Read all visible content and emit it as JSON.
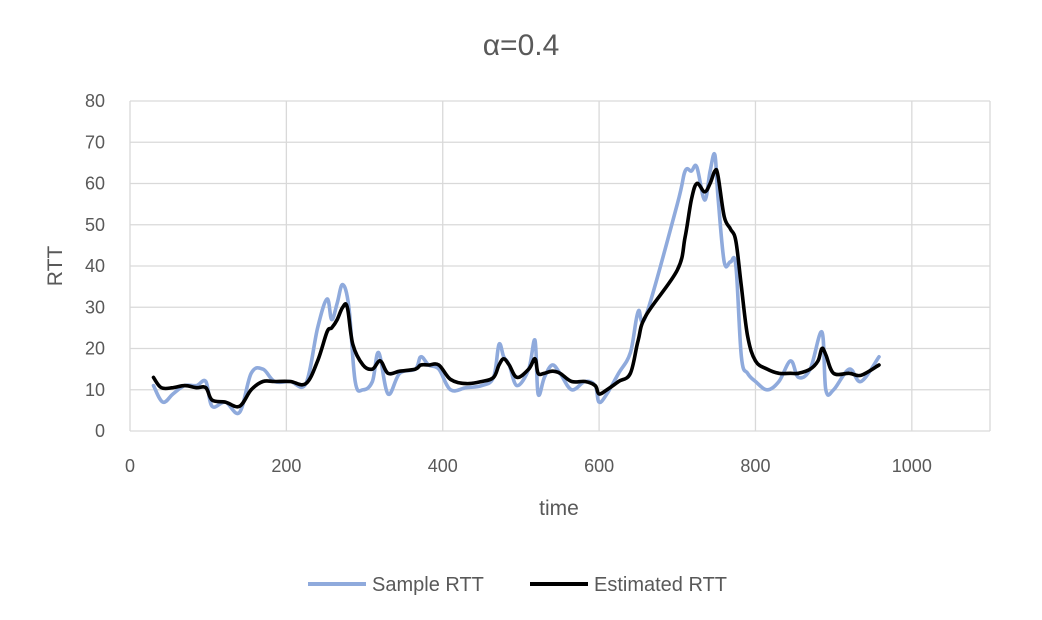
{
  "chart_data": {
    "type": "line",
    "title": "α=0.4",
    "xlabel": "time",
    "ylabel": "RTT",
    "xlim": [
      0,
      1100
    ],
    "ylim": [
      0,
      80
    ],
    "xticks": [
      0,
      200,
      400,
      600,
      800,
      1000
    ],
    "yticks": [
      0,
      10,
      20,
      30,
      40,
      50,
      60,
      70,
      80
    ],
    "grid": true,
    "legend": "bottom",
    "series": [
      {
        "name": "Sample RTT",
        "color": "#8faadc",
        "x": [
          30,
          42,
          55,
          70,
          85,
          97,
          105,
          122,
          140,
          155,
          170,
          185,
          205,
          225,
          240,
          252,
          258,
          265,
          272,
          280,
          288,
          298,
          310,
          318,
          330,
          345,
          365,
          372,
          382,
          395,
          410,
          430,
          450,
          465,
          472,
          478,
          485,
          495,
          510,
          518,
          522,
          530,
          540,
          550,
          565,
          582,
          595,
          600,
          610,
          625,
          640,
          650,
          660,
          700,
          710,
          718,
          725,
          735,
          742,
          748,
          752,
          760,
          768,
          775,
          782,
          790,
          800,
          815,
          830,
          845,
          855,
          870,
          885,
          890,
          900,
          920,
          935,
          958
        ],
        "y": [
          11,
          7,
          9,
          11,
          11,
          12,
          6,
          7,
          4.5,
          14,
          15,
          12,
          12,
          11.5,
          25,
          32,
          27,
          31,
          35.5,
          30,
          12,
          10,
          12,
          19,
          9,
          14,
          15,
          18,
          16,
          15,
          10,
          10.5,
          11,
          13,
          21,
          18,
          16,
          11,
          15,
          22,
          9,
          13,
          16,
          14,
          10,
          12,
          11,
          7,
          9,
          14,
          19,
          29,
          28,
          55,
          63,
          63,
          64,
          56,
          63,
          67,
          57,
          41,
          41,
          40,
          18,
          14,
          12,
          10,
          12,
          17,
          13,
          15,
          24,
          10,
          10,
          15,
          12,
          18
        ]
      },
      {
        "name": "Estimated RTT",
        "color": "#000000",
        "x": [
          30,
          40,
          55,
          70,
          85,
          97,
          105,
          122,
          140,
          155,
          170,
          185,
          205,
          225,
          240,
          252,
          258,
          265,
          272,
          278,
          285,
          298,
          310,
          320,
          330,
          345,
          365,
          372,
          382,
          395,
          410,
          430,
          450,
          465,
          472,
          478,
          485,
          495,
          510,
          518,
          522,
          530,
          540,
          550,
          565,
          582,
          595,
          600,
          610,
          625,
          640,
          650,
          660,
          700,
          710,
          718,
          725,
          735,
          742,
          748,
          752,
          760,
          768,
          775,
          782,
          790,
          800,
          815,
          830,
          845,
          855,
          870,
          880,
          885,
          890,
          900,
          920,
          935,
          958
        ],
        "y": [
          13,
          10.5,
          10.5,
          11,
          10.5,
          10.5,
          7.5,
          7,
          6,
          10,
          12,
          12,
          12,
          11.5,
          17,
          24,
          25,
          27,
          30,
          30,
          21,
          16,
          15,
          17,
          14,
          14.5,
          15,
          16,
          16,
          16,
          12.5,
          11.5,
          12,
          13,
          16,
          17.5,
          16,
          13,
          15,
          17.5,
          14,
          14,
          14.5,
          14,
          12,
          12,
          11,
          9,
          10,
          12,
          14,
          22,
          28,
          39,
          47,
          56,
          60,
          58,
          60,
          63,
          62,
          52,
          49,
          46,
          35,
          23,
          17,
          15,
          14,
          14,
          14,
          15,
          17,
          20,
          18.5,
          14,
          14,
          13.5,
          16
        ]
      }
    ]
  }
}
